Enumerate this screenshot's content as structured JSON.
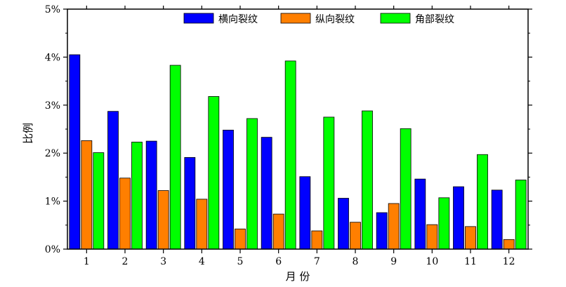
{
  "chart_data": {
    "type": "bar",
    "title": "",
    "xlabel": "月 份",
    "ylabel": "比例",
    "categories": [
      "1",
      "2",
      "3",
      "4",
      "5",
      "6",
      "7",
      "8",
      "9",
      "10",
      "11",
      "12"
    ],
    "yticks": [
      "0%",
      "1%",
      "2%",
      "3%",
      "4%",
      "5%"
    ],
    "ylim": [
      0,
      5
    ],
    "grid": false,
    "legend_position": "top",
    "series": [
      {
        "name": "横向裂纹",
        "color": "#0000ff",
        "values": [
          4.05,
          2.87,
          2.25,
          1.91,
          2.48,
          2.33,
          1.51,
          1.06,
          0.76,
          1.46,
          1.3,
          1.23
        ]
      },
      {
        "name": "纵向裂纹",
        "color": "#ff7f00",
        "values": [
          2.26,
          1.48,
          1.22,
          1.04,
          0.42,
          0.73,
          0.38,
          0.56,
          0.95,
          0.51,
          0.47,
          0.2
        ]
      },
      {
        "name": "角部裂纹",
        "color": "#00ff00",
        "values": [
          2.01,
          2.23,
          3.83,
          3.18,
          2.72,
          3.92,
          2.75,
          2.88,
          2.51,
          1.07,
          1.97,
          1.44
        ]
      }
    ]
  }
}
